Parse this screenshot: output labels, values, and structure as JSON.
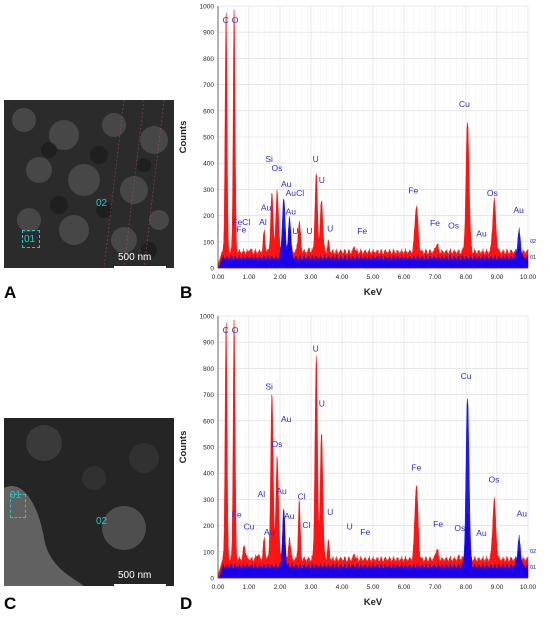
{
  "panels": [
    {
      "letter": "A",
      "scale_label": "500 nm",
      "roi_labels": [
        "01",
        "02"
      ]
    },
    {
      "letter": "B"
    },
    {
      "letter": "C",
      "scale_label": "500 nm",
      "roi_labels": [
        "01",
        "02"
      ]
    },
    {
      "letter": "D"
    }
  ],
  "colors": {
    "series_01": "#ff0000",
    "series_02": "#0000ff",
    "label": "#2b2bd6",
    "roi": "#2ec4c4"
  },
  "chart_data": [
    {
      "type": "area",
      "xlabel": "KeV",
      "ylabel": "Counts",
      "xlim": [
        0,
        10
      ],
      "ylim": [
        0,
        1000
      ],
      "xticks": [
        "0.00",
        "1.00",
        "2.00",
        "3.00",
        "4.00",
        "5.00",
        "6.00",
        "7.00",
        "8.00",
        "9.00",
        "10.00"
      ],
      "yticks": [
        "0",
        "100",
        "200",
        "300",
        "400",
        "500",
        "600",
        "700",
        "800",
        "900",
        "1000"
      ],
      "grid": true,
      "series_labels": [
        "02",
        "01"
      ],
      "series": [
        {
          "name": "01",
          "baseline": 60,
          "peaks": [
            [
              0.26,
              1000,
              0.03
            ],
            [
              0.52,
              1000,
              0.03
            ],
            [
              1.04,
              70,
              0.03
            ],
            [
              1.49,
              140,
              0.03
            ],
            [
              1.74,
              280,
              0.04
            ],
            [
              1.91,
              300,
              0.04
            ],
            [
              2.12,
              150,
              0.04
            ],
            [
              2.31,
              160,
              0.03
            ],
            [
              2.62,
              175,
              0.04
            ],
            [
              2.95,
              70,
              0.03
            ],
            [
              3.17,
              360,
              0.04
            ],
            [
              3.34,
              260,
              0.04
            ],
            [
              3.56,
              100,
              0.03
            ],
            [
              4.4,
              80,
              0.03
            ],
            [
              6.4,
              240,
              0.05
            ],
            [
              7.06,
              90,
              0.04
            ],
            [
              7.78,
              60,
              0.04
            ],
            [
              8.05,
              560,
              0.05
            ],
            [
              8.91,
              260,
              0.05
            ],
            [
              9.71,
              70,
              0.04
            ]
          ]
        },
        {
          "name": "02",
          "baseline": 60,
          "peaks": [
            [
              2.12,
              260,
              0.05
            ],
            [
              9.71,
              140,
              0.05
            ],
            [
              2.31,
              200,
              0.04
            ]
          ]
        }
      ],
      "annotations": [
        {
          "text": "C",
          "x": 0.25,
          "y": 935
        },
        {
          "text": "O",
          "x": 0.55,
          "y": 935
        },
        {
          "text": "Si",
          "x": 1.65,
          "y": 405
        },
        {
          "text": "Os",
          "x": 1.9,
          "y": 370
        },
        {
          "text": "Au",
          "x": 2.2,
          "y": 310
        },
        {
          "text": "Au",
          "x": 2.35,
          "y": 275
        },
        {
          "text": "Au",
          "x": 1.55,
          "y": 220
        },
        {
          "text": "Au",
          "x": 2.35,
          "y": 205
        },
        {
          "text": "Cl",
          "x": 2.65,
          "y": 275
        },
        {
          "text": "U",
          "x": 3.15,
          "y": 405
        },
        {
          "text": "U",
          "x": 3.35,
          "y": 325
        },
        {
          "text": "U",
          "x": 3.62,
          "y": 140
        },
        {
          "text": "U",
          "x": 2.5,
          "y": 130
        },
        {
          "text": "U",
          "x": 2.95,
          "y": 130
        },
        {
          "text": "FeCl",
          "x": 0.75,
          "y": 165
        },
        {
          "text": "Al",
          "x": 1.45,
          "y": 165
        },
        {
          "text": "Fe",
          "x": 0.75,
          "y": 135
        },
        {
          "text": "Fe",
          "x": 4.65,
          "y": 130
        },
        {
          "text": "Fe",
          "x": 6.3,
          "y": 285
        },
        {
          "text": "Fe",
          "x": 7.0,
          "y": 160
        },
        {
          "text": "Os",
          "x": 7.6,
          "y": 150
        },
        {
          "text": "Cu",
          "x": 7.95,
          "y": 615
        },
        {
          "text": "Os",
          "x": 8.85,
          "y": 275
        },
        {
          "text": "Au",
          "x": 8.5,
          "y": 120
        },
        {
          "text": "Au",
          "x": 9.7,
          "y": 210
        }
      ]
    },
    {
      "type": "area",
      "xlabel": "KeV",
      "ylabel": "Counts",
      "xlim": [
        0,
        10
      ],
      "ylim": [
        0,
        1000
      ],
      "xticks": [
        "0.00",
        "1.00",
        "2.00",
        "3.00",
        "4.00",
        "5.00",
        "6.00",
        "7.00",
        "8.00",
        "9.00",
        "10.00"
      ],
      "yticks": [
        "0",
        "100",
        "200",
        "300",
        "400",
        "500",
        "600",
        "700",
        "800",
        "900",
        "1000"
      ],
      "grid": true,
      "series_labels": [
        "02",
        "01"
      ],
      "series": [
        {
          "name": "01",
          "baseline": 70,
          "peaks": [
            [
              0.26,
              1000,
              0.03
            ],
            [
              0.52,
              1000,
              0.03
            ],
            [
              0.85,
              120,
              0.04
            ],
            [
              1.28,
              90,
              0.04
            ],
            [
              1.49,
              150,
              0.03
            ],
            [
              1.74,
              700,
              0.04
            ],
            [
              1.91,
              470,
              0.04
            ],
            [
              2.12,
              230,
              0.04
            ],
            [
              2.31,
              160,
              0.03
            ],
            [
              2.62,
              300,
              0.03
            ],
            [
              3.17,
              850,
              0.04
            ],
            [
              3.34,
              560,
              0.04
            ],
            [
              3.56,
              140,
              0.03
            ],
            [
              4.4,
              90,
              0.03
            ],
            [
              6.4,
              360,
              0.05
            ],
            [
              7.06,
              110,
              0.04
            ],
            [
              7.78,
              80,
              0.04
            ],
            [
              8.05,
              250,
              0.05
            ],
            [
              8.91,
              300,
              0.05
            ],
            [
              9.71,
              100,
              0.04
            ]
          ]
        },
        {
          "name": "02",
          "baseline": 70,
          "peaks": [
            [
              8.05,
              690,
              0.05
            ],
            [
              2.12,
              260,
              0.04
            ],
            [
              9.71,
              150,
              0.05
            ]
          ]
        }
      ],
      "annotations": [
        {
          "text": "C",
          "x": 0.25,
          "y": 935
        },
        {
          "text": "O",
          "x": 0.55,
          "y": 935
        },
        {
          "text": "Si",
          "x": 1.65,
          "y": 720
        },
        {
          "text": "U",
          "x": 3.15,
          "y": 865
        },
        {
          "text": "U",
          "x": 3.35,
          "y": 655
        },
        {
          "text": "Au",
          "x": 2.2,
          "y": 595
        },
        {
          "text": "Os",
          "x": 1.9,
          "y": 500
        },
        {
          "text": "Au",
          "x": 2.05,
          "y": 320
        },
        {
          "text": "Au",
          "x": 2.3,
          "y": 225
        },
        {
          "text": "Cl",
          "x": 2.7,
          "y": 300
        },
        {
          "text": "Cl",
          "x": 2.85,
          "y": 190
        },
        {
          "text": "U",
          "x": 3.62,
          "y": 240
        },
        {
          "text": "Al",
          "x": 1.4,
          "y": 310
        },
        {
          "text": "Au",
          "x": 1.65,
          "y": 165
        },
        {
          "text": "Fe",
          "x": 0.6,
          "y": 230
        },
        {
          "text": "Cu",
          "x": 1.0,
          "y": 185
        },
        {
          "text": "U",
          "x": 4.25,
          "y": 185
        },
        {
          "text": "Fe",
          "x": 4.75,
          "y": 165
        },
        {
          "text": "Fe",
          "x": 6.4,
          "y": 410
        },
        {
          "text": "Fe",
          "x": 7.1,
          "y": 195
        },
        {
          "text": "Os",
          "x": 7.8,
          "y": 180
        },
        {
          "text": "Cu",
          "x": 8.0,
          "y": 760
        },
        {
          "text": "Os",
          "x": 8.9,
          "y": 365
        },
        {
          "text": "Au",
          "x": 8.5,
          "y": 160
        },
        {
          "text": "Au",
          "x": 9.8,
          "y": 235
        }
      ]
    }
  ]
}
